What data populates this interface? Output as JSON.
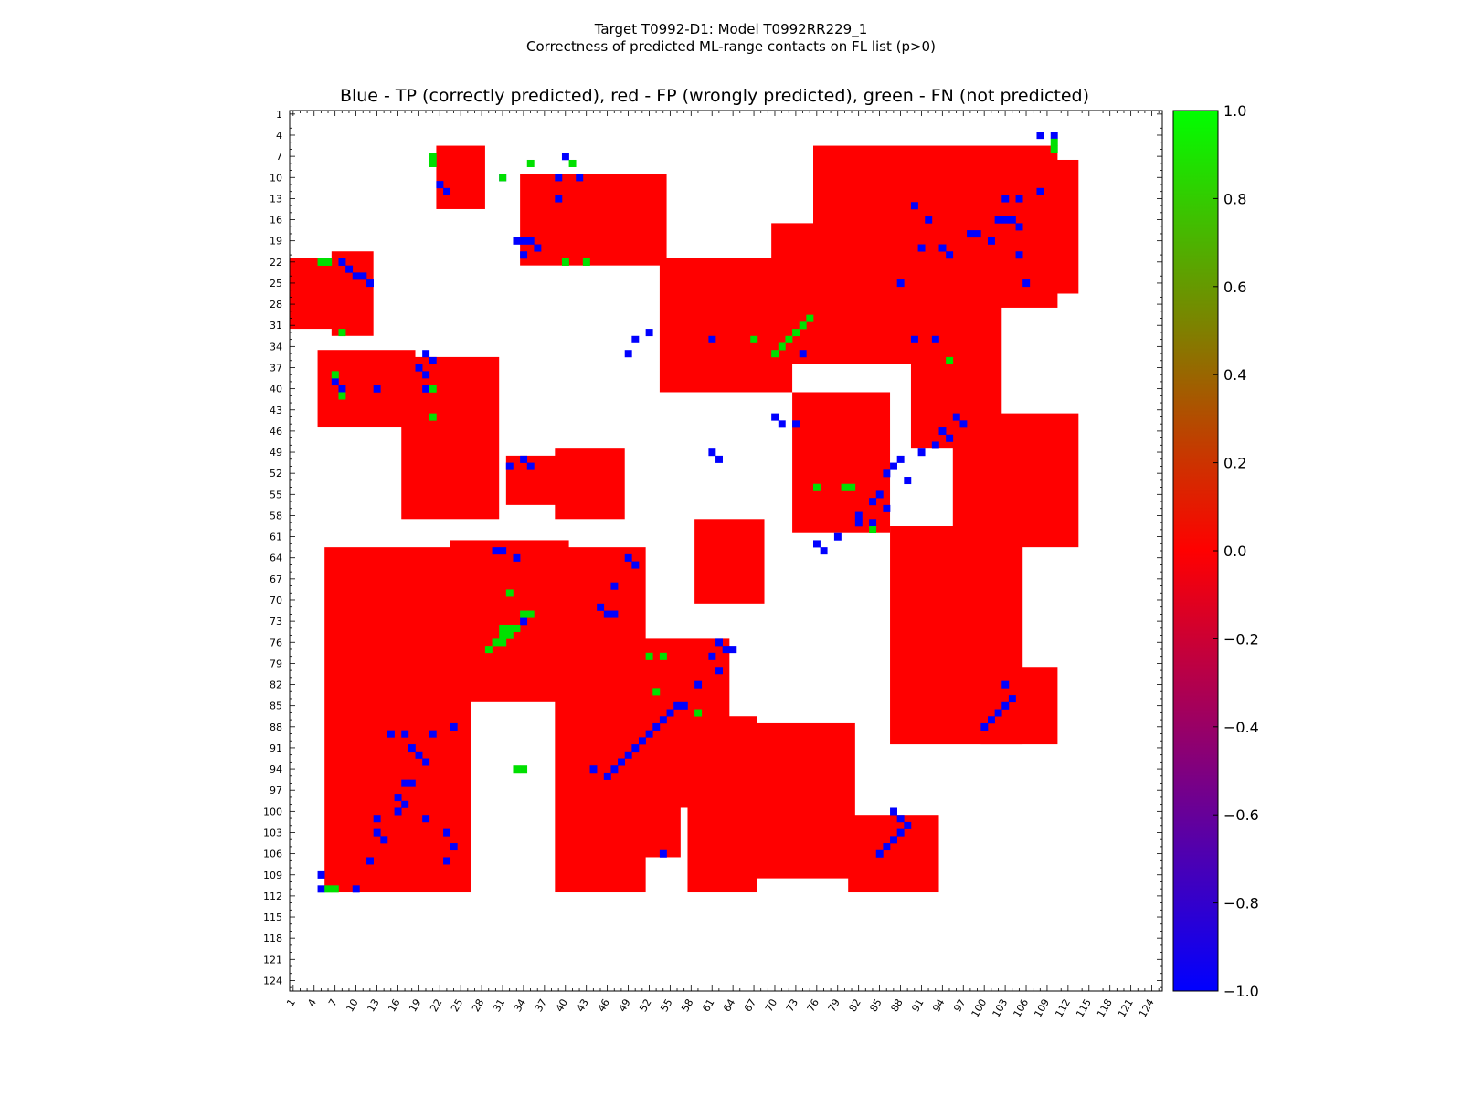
{
  "figure": {
    "suptitle_line1": "Target T0992-D1: Model T0992RR229_1",
    "suptitle_line2": "Correctness of predicted ML-range contacts on FL list (p>0)"
  },
  "chart_data": {
    "type": "heatmap",
    "title": "Blue - TP (correctly predicted), red - FP (wrongly predicted), green - FN (not predicted)",
    "xlabel": "",
    "ylabel": "",
    "n_residues": 125,
    "x_ticks": [
      1,
      4,
      7,
      10,
      13,
      16,
      19,
      22,
      25,
      28,
      31,
      34,
      37,
      40,
      43,
      46,
      49,
      52,
      55,
      58,
      61,
      64,
      67,
      70,
      73,
      76,
      79,
      82,
      85,
      88,
      91,
      94,
      97,
      100,
      103,
      106,
      109,
      112,
      115,
      118,
      121,
      124
    ],
    "y_ticks": [
      1,
      4,
      7,
      10,
      13,
      16,
      19,
      22,
      25,
      28,
      31,
      34,
      37,
      40,
      43,
      46,
      49,
      52,
      55,
      58,
      61,
      64,
      67,
      70,
      73,
      76,
      79,
      82,
      85,
      88,
      91,
      94,
      97,
      100,
      103,
      106,
      109,
      112,
      115,
      118,
      121,
      124
    ],
    "grid": false,
    "colors": {
      "tp": "#0000ff",
      "fp": "#ff0000",
      "fn": "#00e000"
    },
    "colorbar": {
      "range": [
        -1.0,
        1.0
      ],
      "ticks": [
        "1.0",
        "0.8",
        "0.6",
        "0.4",
        "0.2",
        "0.0",
        "−0.2",
        "−0.4",
        "−0.6",
        "−0.8",
        "−1.0"
      ],
      "gradient_stops": [
        "#00ff00",
        "#ff0000",
        "#0000ff"
      ]
    },
    "red_regions": [
      [
        76,
        110,
        6,
        28
      ],
      [
        92,
        113,
        8,
        26
      ],
      [
        70,
        95,
        17,
        36
      ],
      [
        54,
        72,
        22,
        40
      ],
      [
        90,
        102,
        26,
        48
      ],
      [
        96,
        113,
        44,
        62
      ],
      [
        34,
        54,
        10,
        22
      ],
      [
        73,
        86,
        41,
        60
      ],
      [
        7,
        12,
        21,
        32
      ],
      [
        17,
        30,
        36,
        58
      ],
      [
        5,
        18,
        35,
        45
      ],
      [
        6,
        26,
        63,
        111
      ],
      [
        24,
        40,
        62,
        84
      ],
      [
        32,
        45,
        50,
        56
      ],
      [
        39,
        51,
        63,
        111
      ],
      [
        45,
        56,
        88,
        106
      ],
      [
        51,
        63,
        76,
        99
      ],
      [
        58,
        67,
        87,
        111
      ],
      [
        63,
        81,
        88,
        109
      ],
      [
        81,
        93,
        101,
        111
      ],
      [
        100,
        110,
        80,
        90
      ],
      [
        1,
        8,
        22,
        31
      ],
      [
        87,
        105,
        60,
        90
      ],
      [
        39,
        48,
        49,
        58
      ],
      [
        59,
        68,
        59,
        70
      ],
      [
        22,
        28,
        6,
        14
      ]
    ],
    "tp_points": [
      [
        108,
        4
      ],
      [
        110,
        4
      ],
      [
        40,
        7
      ],
      [
        31,
        10
      ],
      [
        39,
        10
      ],
      [
        42,
        10
      ],
      [
        22,
        11
      ],
      [
        23,
        12
      ],
      [
        39,
        13
      ],
      [
        103,
        13
      ],
      [
        105,
        13
      ],
      [
        108,
        12
      ],
      [
        90,
        14
      ],
      [
        92,
        16
      ],
      [
        102,
        16
      ],
      [
        103,
        16
      ],
      [
        104,
        16
      ],
      [
        105,
        17
      ],
      [
        98,
        18
      ],
      [
        99,
        18
      ],
      [
        101,
        19
      ],
      [
        91,
        20
      ],
      [
        94,
        20
      ],
      [
        33,
        19
      ],
      [
        34,
        19
      ],
      [
        35,
        19
      ],
      [
        36,
        20
      ],
      [
        34,
        21
      ],
      [
        105,
        21
      ],
      [
        95,
        21
      ],
      [
        8,
        22
      ],
      [
        9,
        23
      ],
      [
        10,
        24
      ],
      [
        11,
        24
      ],
      [
        12,
        25
      ],
      [
        88,
        25
      ],
      [
        106,
        25
      ],
      [
        50,
        33
      ],
      [
        52,
        32
      ],
      [
        61,
        33
      ],
      [
        90,
        33
      ],
      [
        93,
        33
      ],
      [
        74,
        35
      ],
      [
        49,
        35
      ],
      [
        20,
        35
      ],
      [
        21,
        36
      ],
      [
        19,
        37
      ],
      [
        20,
        38
      ],
      [
        7,
        39
      ],
      [
        8,
        40
      ],
      [
        13,
        40
      ],
      [
        20,
        40
      ],
      [
        70,
        44
      ],
      [
        71,
        45
      ],
      [
        73,
        45
      ],
      [
        96,
        44
      ],
      [
        97,
        45
      ],
      [
        94,
        46
      ],
      [
        95,
        47
      ],
      [
        93,
        48
      ],
      [
        61,
        49
      ],
      [
        62,
        50
      ],
      [
        91,
        49
      ],
      [
        88,
        50
      ],
      [
        87,
        51
      ],
      [
        86,
        52
      ],
      [
        89,
        53
      ],
      [
        85,
        55
      ],
      [
        84,
        56
      ],
      [
        86,
        57
      ],
      [
        82,
        58
      ],
      [
        82,
        59
      ],
      [
        84,
        59
      ],
      [
        79,
        61
      ],
      [
        76,
        62
      ],
      [
        77,
        63
      ],
      [
        34,
        50
      ],
      [
        32,
        51
      ],
      [
        35,
        51
      ],
      [
        30,
        63
      ],
      [
        31,
        63
      ],
      [
        33,
        64
      ],
      [
        49,
        64
      ],
      [
        50,
        65
      ],
      [
        47,
        68
      ],
      [
        45,
        71
      ],
      [
        46,
        72
      ],
      [
        47,
        72
      ],
      [
        34,
        73
      ],
      [
        62,
        76
      ],
      [
        63,
        77
      ],
      [
        64,
        77
      ],
      [
        61,
        78
      ],
      [
        62,
        80
      ],
      [
        59,
        82
      ],
      [
        57,
        85
      ],
      [
        56,
        85
      ],
      [
        55,
        86
      ],
      [
        54,
        87
      ],
      [
        53,
        88
      ],
      [
        52,
        89
      ],
      [
        51,
        90
      ],
      [
        50,
        91
      ],
      [
        49,
        92
      ],
      [
        48,
        93
      ],
      [
        47,
        94
      ],
      [
        44,
        94
      ],
      [
        46,
        95
      ],
      [
        15,
        89
      ],
      [
        17,
        89
      ],
      [
        21,
        89
      ],
      [
        24,
        88
      ],
      [
        18,
        91
      ],
      [
        19,
        92
      ],
      [
        20,
        93
      ],
      [
        17,
        96
      ],
      [
        18,
        96
      ],
      [
        16,
        98
      ],
      [
        17,
        99
      ],
      [
        16,
        100
      ],
      [
        13,
        101
      ],
      [
        20,
        101
      ],
      [
        13,
        103
      ],
      [
        14,
        104
      ],
      [
        23,
        103
      ],
      [
        24,
        105
      ],
      [
        12,
        107
      ],
      [
        23,
        107
      ],
      [
        5,
        109
      ],
      [
        5,
        111
      ],
      [
        10,
        111
      ],
      [
        54,
        106
      ],
      [
        85,
        106
      ],
      [
        86,
        105
      ],
      [
        87,
        104
      ],
      [
        88,
        103
      ],
      [
        89,
        102
      ],
      [
        87,
        100
      ],
      [
        88,
        101
      ],
      [
        103,
        85
      ],
      [
        102,
        86
      ],
      [
        101,
        87
      ],
      [
        100,
        88
      ],
      [
        104,
        84
      ],
      [
        103,
        82
      ]
    ],
    "fn_points": [
      [
        110,
        5
      ],
      [
        110,
        6
      ],
      [
        21,
        7
      ],
      [
        21,
        8
      ],
      [
        35,
        8
      ],
      [
        31,
        10
      ],
      [
        41,
        8
      ],
      [
        40,
        22
      ],
      [
        43,
        22
      ],
      [
        5,
        22
      ],
      [
        6,
        22
      ],
      [
        8,
        32
      ],
      [
        7,
        38
      ],
      [
        8,
        41
      ],
      [
        21,
        40
      ],
      [
        21,
        44
      ],
      [
        75,
        30
      ],
      [
        74,
        31
      ],
      [
        73,
        32
      ],
      [
        72,
        33
      ],
      [
        71,
        34
      ],
      [
        67,
        33
      ],
      [
        70,
        35
      ],
      [
        95,
        36
      ],
      [
        76,
        54
      ],
      [
        80,
        54
      ],
      [
        81,
        54
      ],
      [
        84,
        60
      ],
      [
        31,
        74
      ],
      [
        32,
        74
      ],
      [
        33,
        74
      ],
      [
        31,
        75
      ],
      [
        34,
        72
      ],
      [
        35,
        72
      ],
      [
        32,
        75
      ],
      [
        30,
        76
      ],
      [
        31,
        76
      ],
      [
        29,
        77
      ],
      [
        52,
        78
      ],
      [
        54,
        78
      ],
      [
        53,
        83
      ],
      [
        59,
        86
      ],
      [
        33,
        94
      ],
      [
        34,
        94
      ],
      [
        32,
        69
      ],
      [
        6,
        111
      ],
      [
        7,
        111
      ]
    ]
  }
}
